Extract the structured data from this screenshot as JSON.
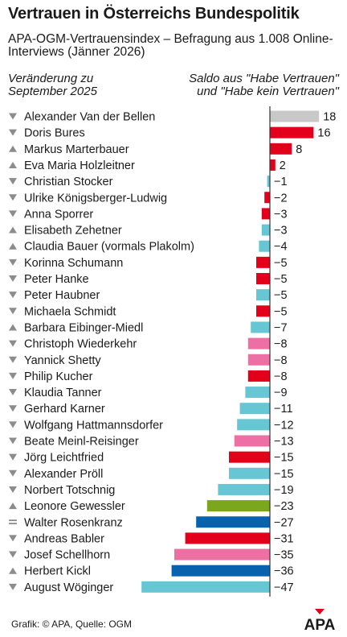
{
  "header": {
    "title": "Vertrauen in Österreichs Bundespolitik",
    "subtitle": "APA-OGM-Vertrauensindex – Befragung aus 1.008 Online-Interviews (Jänner 2026)",
    "left_label_line1": "Veränderung zu",
    "left_label_line2": "September 2025",
    "right_label_line1": "Saldo aus \"Habe Vertrauen\"",
    "right_label_line2": "und \"Habe kein Vertrauen\""
  },
  "footer": {
    "source": "Grafik: © APA, Quelle: OGM"
  },
  "logo": {
    "text": "APA"
  },
  "colors": {
    "grey": "#c8c8c8",
    "red": "#e2001a",
    "cyan": "#66c6d3",
    "pink": "#ee6fa3",
    "green": "#7ba61e",
    "blue": "#0763ad",
    "navy": "#0e3f7e",
    "marker": "#8c8c8c",
    "axis": "#333333"
  },
  "chart_data": {
    "type": "bar",
    "orientation": "horizontal",
    "value_label": "Saldo aus \"Habe Vertrauen\" und \"Habe kein Vertrauen\"",
    "change_label": "Veränderung zu September 2025",
    "xlim": [
      -47,
      18
    ],
    "rows": [
      {
        "name": "Alexander Van der Bellen",
        "value": 18,
        "label": "18",
        "trend": "down",
        "color": "grey"
      },
      {
        "name": "Doris Bures",
        "value": 16,
        "label": "16",
        "trend": "down",
        "color": "red"
      },
      {
        "name": "Markus Marterbauer",
        "value": 8,
        "label": "8",
        "trend": "up",
        "color": "red"
      },
      {
        "name": "Eva Maria Holzleitner",
        "value": 2,
        "label": "2",
        "trend": "up",
        "color": "red"
      },
      {
        "name": "Christian Stocker",
        "value": -1,
        "label": "−1",
        "trend": "down",
        "color": "cyan"
      },
      {
        "name": "Ulrike Königsberger-Ludwig",
        "value": -2,
        "label": "−2",
        "trend": "down",
        "color": "red"
      },
      {
        "name": "Anna Sporrer",
        "value": -3,
        "label": "−3",
        "trend": "down",
        "color": "red"
      },
      {
        "name": "Elisabeth Zehetner",
        "value": -3,
        "label": "−3",
        "trend": "up",
        "color": "cyan"
      },
      {
        "name": "Claudia Bauer (vormals Plakolm)",
        "value": -4,
        "label": "−4",
        "trend": "up",
        "color": "cyan"
      },
      {
        "name": "Korinna Schumann",
        "value": -5,
        "label": "−5",
        "trend": "down",
        "color": "red"
      },
      {
        "name": "Peter Hanke",
        "value": -5,
        "label": "−5",
        "trend": "down",
        "color": "red"
      },
      {
        "name": "Peter Haubner",
        "value": -5,
        "label": "−5",
        "trend": "down",
        "color": "cyan"
      },
      {
        "name": "Michaela Schmidt",
        "value": -5,
        "label": "−5",
        "trend": "down",
        "color": "red"
      },
      {
        "name": "Barbara Eibinger-Miedl",
        "value": -7,
        "label": "−7",
        "trend": "up",
        "color": "cyan"
      },
      {
        "name": "Christoph Wiederkehr",
        "value": -8,
        "label": "−8",
        "trend": "down",
        "color": "pink"
      },
      {
        "name": "Yannick Shetty",
        "value": -8,
        "label": "−8",
        "trend": "down",
        "color": "pink"
      },
      {
        "name": "Philip Kucher",
        "value": -8,
        "label": "−8",
        "trend": "down",
        "color": "red"
      },
      {
        "name": "Klaudia Tanner",
        "value": -9,
        "label": "−9",
        "trend": "down",
        "color": "cyan"
      },
      {
        "name": "Gerhard Karner",
        "value": -11,
        "label": "−11",
        "trend": "down",
        "color": "cyan"
      },
      {
        "name": "Wolfgang Hattmannsdorfer",
        "value": -12,
        "label": "−12",
        "trend": "down",
        "color": "cyan"
      },
      {
        "name": "Beate Meinl-Reisinger",
        "value": -13,
        "label": "−13",
        "trend": "down",
        "color": "pink"
      },
      {
        "name": "Jörg Leichtfried",
        "value": -15,
        "label": "−15",
        "trend": "down",
        "color": "red"
      },
      {
        "name": "Alexander Pröll",
        "value": -15,
        "label": "−15",
        "trend": "down",
        "color": "cyan"
      },
      {
        "name": "Norbert Totschnig",
        "value": -19,
        "label": "−19",
        "trend": "down",
        "color": "cyan"
      },
      {
        "name": "Leonore Gewessler",
        "value": -23,
        "label": "−23",
        "trend": "up",
        "color": "green"
      },
      {
        "name": "Walter Rosenkranz",
        "value": -27,
        "label": "−27",
        "trend": "equal",
        "color": "blue"
      },
      {
        "name": "Andreas Babler",
        "value": -31,
        "label": "−31",
        "trend": "down",
        "color": "red"
      },
      {
        "name": "Josef Schellhorn",
        "value": -35,
        "label": "−35",
        "trend": "down",
        "color": "pink"
      },
      {
        "name": "Herbert Kickl",
        "value": -36,
        "label": "−36",
        "trend": "up",
        "color": "blue"
      },
      {
        "name": "August Wöginger",
        "value": -47,
        "label": "−47",
        "trend": "down",
        "color": "cyan"
      }
    ]
  }
}
